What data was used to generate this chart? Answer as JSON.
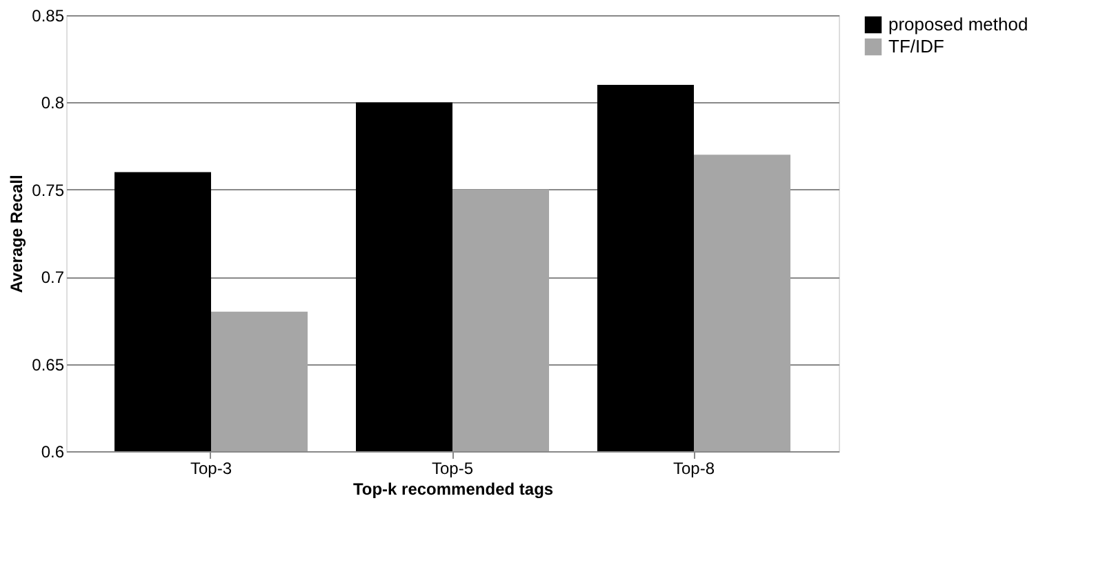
{
  "chart_data": {
    "type": "bar",
    "xlabel": "Top-k recommended tags",
    "ylabel": "Average Recall",
    "categories": [
      "Top-3",
      "Top-5",
      "Top-8"
    ],
    "series": [
      {
        "name": "proposed method",
        "color": "#000000",
        "values": [
          0.76,
          0.8,
          0.81
        ]
      },
      {
        "name": "TF/IDF",
        "color": "#a6a6a6",
        "values": [
          0.68,
          0.75,
          0.77
        ]
      }
    ],
    "ylim": [
      0.6,
      0.85
    ],
    "yticks": [
      0.6,
      0.65,
      0.7,
      0.75,
      0.8,
      0.85
    ],
    "grid": "y",
    "legend": "right"
  }
}
